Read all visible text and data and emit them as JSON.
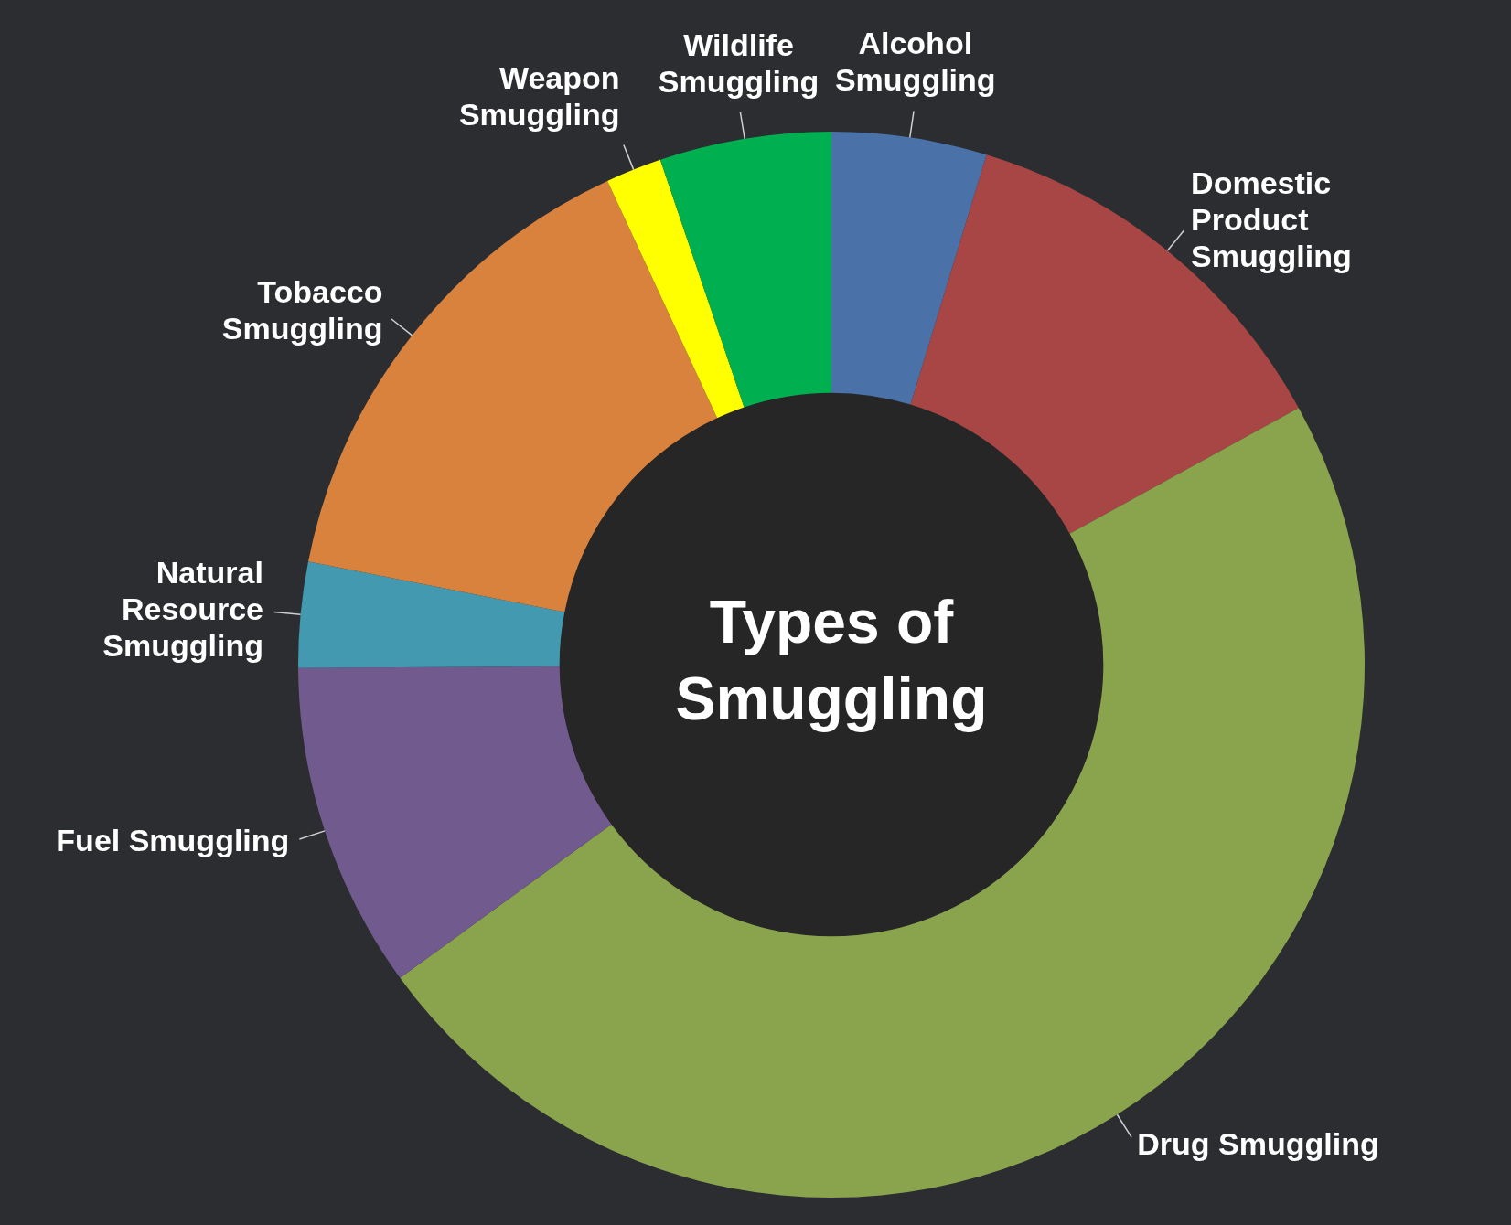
{
  "chart_data": {
    "type": "donut",
    "title": "Types of Smuggling",
    "categories": [
      "Alcohol Smuggling",
      "Domestic Product Smuggling",
      "Drug Smuggling",
      "Fuel Smuggling",
      "Natural Resource Smuggling",
      "Tobacco Smuggling",
      "Weapon Smuggling",
      "Wildlife Smuggling"
    ],
    "values": [
      4.7,
      12.3,
      48.0,
      9.9,
      3.2,
      15.0,
      1.7,
      5.2
    ],
    "colors": [
      "#4a72a8",
      "#a84646",
      "#8aa44e",
      "#715a8e",
      "#4399b0",
      "#d9823e",
      "#ffff00",
      "#00b050"
    ],
    "legend": false
  }
}
